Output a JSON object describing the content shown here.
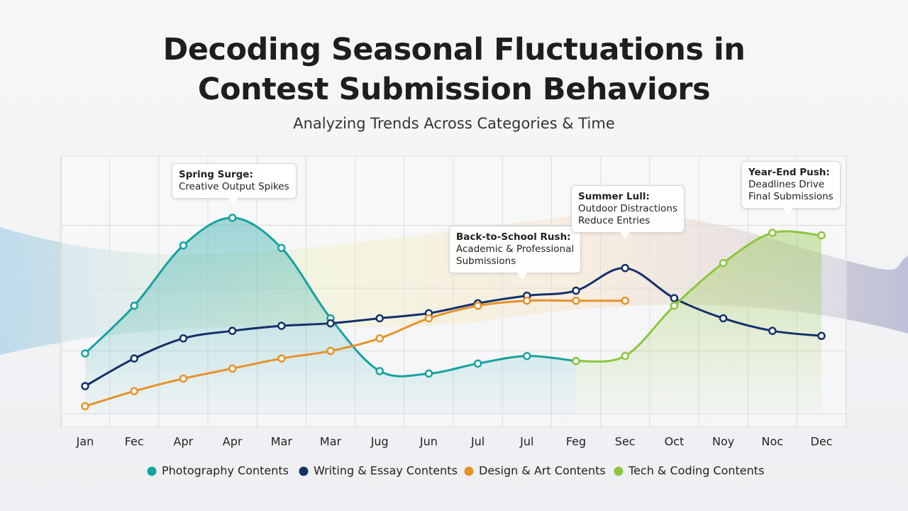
{
  "chart_data": {
    "type": "line",
    "title": "Decoding Seasonal Fluctuations in Contest Submission Behaviors",
    "subtitle": "Analyzing Trends Across Categories & Time",
    "categories": [
      "Jan",
      "Fec",
      "Apr",
      "Apr",
      "Mar",
      "Mar",
      "Jug",
      "Jun",
      "Jul",
      "Jul",
      "Feg",
      "Sec",
      "Oct",
      "Noy",
      "Noc",
      "Dec"
    ],
    "ylim": [
      0,
      100
    ],
    "yticks": [
      0,
      25,
      50,
      75
    ],
    "grid": true,
    "legend": "bottom",
    "series": [
      {
        "name": "Photography Contents",
        "color": "#17a2a0",
        "fill": true,
        "values": [
          24,
          43,
          67,
          78,
          66,
          38,
          17,
          16,
          20,
          23,
          21,
          null,
          null,
          null,
          null,
          null
        ]
      },
      {
        "name": "Writing & Essay Contents",
        "color": "#14306b",
        "fill": false,
        "values": [
          11,
          22,
          30,
          33,
          35,
          36,
          38,
          40,
          44,
          47,
          49,
          58,
          46,
          38,
          33,
          31
        ]
      },
      {
        "name": "Design & Art Contents",
        "color": "#e8922a",
        "fill": false,
        "values": [
          3,
          9,
          14,
          18,
          22,
          25,
          30,
          38,
          43,
          45,
          45,
          45,
          null,
          null,
          null,
          null
        ]
      },
      {
        "name": "Tech & Coding Contents",
        "color": "#8cc63f",
        "fill": true,
        "values": [
          null,
          null,
          null,
          null,
          null,
          null,
          null,
          null,
          null,
          null,
          21,
          23,
          43,
          60,
          72,
          71
        ]
      }
    ],
    "annotations": [
      {
        "title": "Spring Surge:",
        "lines": [
          "Creative Output Spikes"
        ]
      },
      {
        "title": "Back-to-School Rush:",
        "lines": [
          "Academic & Professional",
          "Submissions"
        ]
      },
      {
        "title": "Summer Lull:",
        "lines": [
          "Outdoor Distractions",
          "Reduce Entries"
        ]
      },
      {
        "title": "Year-End Push:",
        "lines": [
          "Deadlines Drive",
          "Final Submissions"
        ]
      }
    ]
  }
}
